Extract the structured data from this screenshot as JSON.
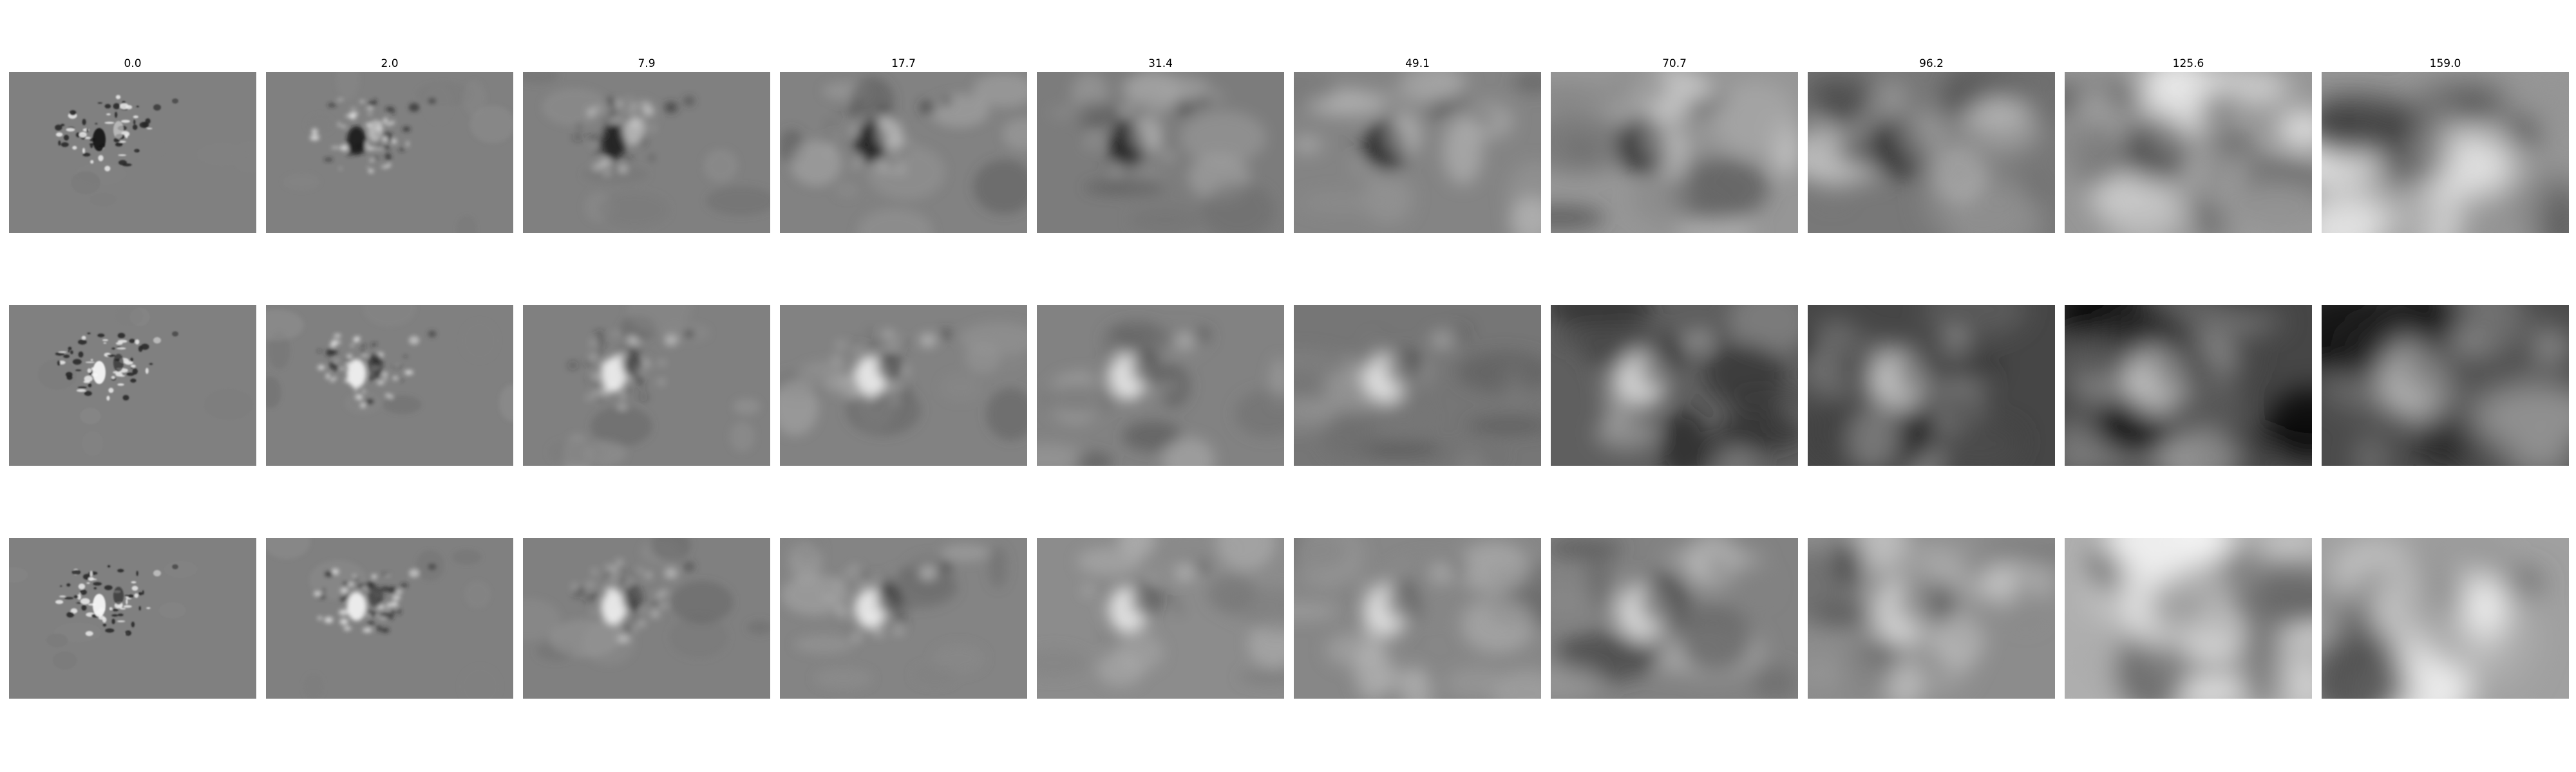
{
  "figure": {
    "columns": [
      "0.0",
      "2.0",
      "7.9",
      "17.7",
      "31.4",
      "49.1",
      "70.7",
      "96.2",
      "125.6",
      "159.0"
    ],
    "row_count": 3,
    "colormap": "gray",
    "background_gray": "#808080"
  }
}
